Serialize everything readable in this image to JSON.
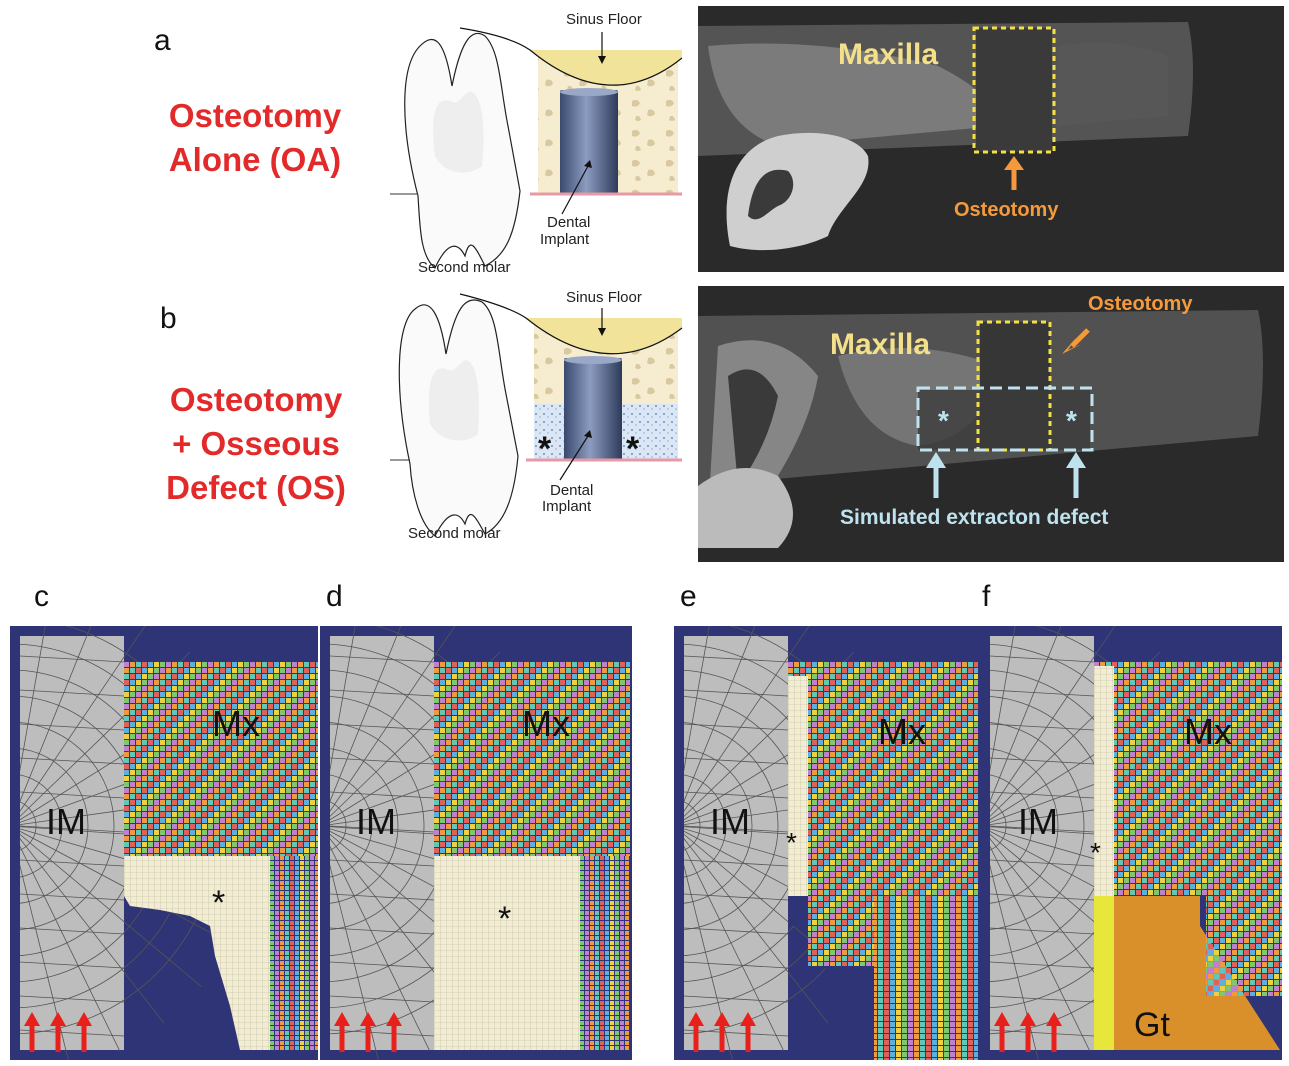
{
  "panels": {
    "a": {
      "letter": "a",
      "title_line1": "Osteotomy",
      "title_line2": "Alone (OA)"
    },
    "b": {
      "letter": "b",
      "title_line1": "Osteotomy",
      "title_line2": "+ Osseous",
      "title_line3": "Defect (OS)"
    },
    "c": {
      "letter": "c"
    },
    "d": {
      "letter": "d"
    },
    "e": {
      "letter": "e"
    },
    "f": {
      "letter": "f"
    }
  },
  "schematic": {
    "sinus_floor": "Sinus Floor",
    "implant_line1": "Dental",
    "implant_line2": "Implant",
    "tooth": "Second molar",
    "defect_marker": "*"
  },
  "xray": {
    "maxilla": "Maxilla",
    "osteotomy": "Osteotomy",
    "simulated_defect": "Simulated extracton defect",
    "defect_marker": "*"
  },
  "fem": {
    "implant_label": "IM",
    "maxilla_label": "Mx",
    "marker": "*",
    "gt_label": "Gt"
  },
  "colors": {
    "title_red": "#e32a2a",
    "xray_yellow": "#f4e08a",
    "osteotomy_orange": "#f59a3c",
    "defect_cyan": "#bfe3ee",
    "fem_background": "#2e3475",
    "implant_gray": "#bdbdbd",
    "tissue_cream": "#f2edd2",
    "graft_orange": "#d9902a",
    "load_arrow_red": "#e8201c"
  }
}
